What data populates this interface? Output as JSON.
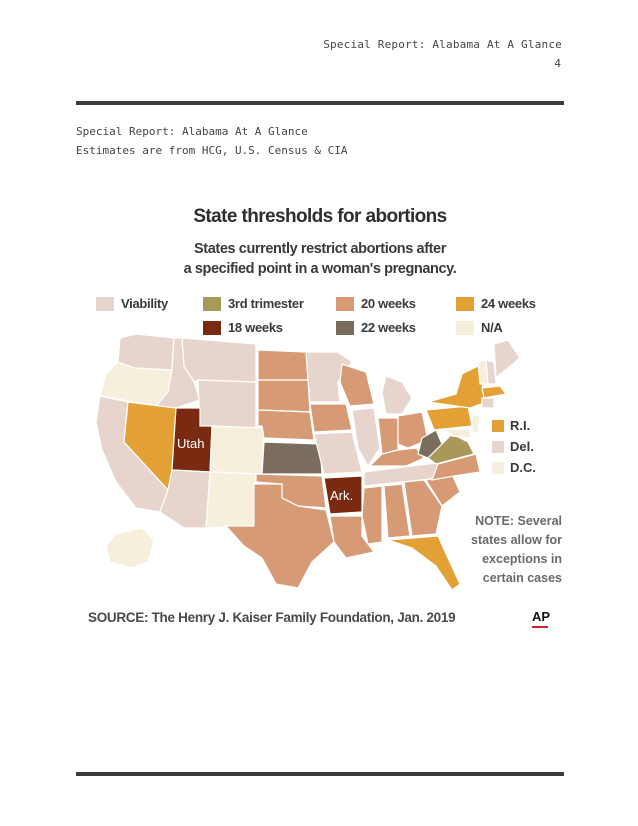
{
  "header": {
    "title": "Special Report: Alabama At A Glance",
    "page_number": "4"
  },
  "intro": {
    "line1": "Special Report: Alabama At A Glance",
    "line2": "Estimates are from HCG, U.S. Census & CIA"
  },
  "graphic": {
    "title": "State thresholds for abortions",
    "subtitle_line1": "States currently restrict abortions after",
    "subtitle_line2": "a specified point in a woman's pregnancy.",
    "legend": [
      {
        "label": "Viability",
        "color": "#e7d5cd"
      },
      {
        "label": "3rd trimester",
        "color": "#a8995a"
      },
      {
        "label": "20 weeks",
        "color": "#d69a74"
      },
      {
        "label": "24 weeks",
        "color": "#e3a135"
      },
      {
        "label": "18 weeks",
        "color": "#7b2a12"
      },
      {
        "label": "22 weeks",
        "color": "#7b6d5d"
      },
      {
        "label": "N/A",
        "color": "#f6efdc"
      }
    ],
    "map_labels": {
      "utah": "Utah",
      "arkansas": "Ark."
    },
    "small_states": [
      {
        "label": "R.I.",
        "color": "#e3a135"
      },
      {
        "label": "Del.",
        "color": "#e7d5cd"
      },
      {
        "label": "D.C.",
        "color": "#f6efdc"
      }
    ],
    "note_lines": [
      "NOTE: Several",
      "states allow for",
      "exceptions in",
      "certain cases"
    ],
    "source": "SOURCE: The Henry J. Kaiser Family Foundation, Jan. 2019",
    "logo_text": "AP"
  }
}
